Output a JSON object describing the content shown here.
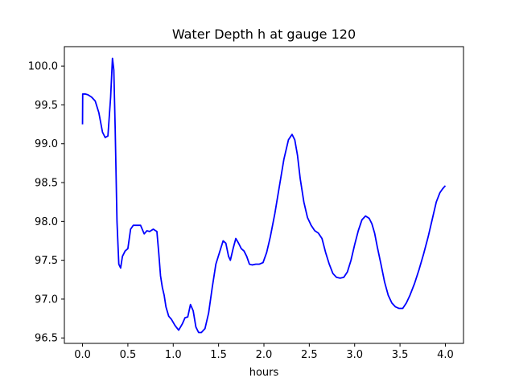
{
  "chart_data": {
    "type": "line",
    "title": "Water Depth h at gauge 120",
    "xlabel": "hours",
    "ylabel": "",
    "xlim": [
      -0.2,
      4.2
    ],
    "ylim": [
      96.43,
      100.25
    ],
    "xticks": [
      {
        "value": 0.0,
        "label": "0.0"
      },
      {
        "value": 0.5,
        "label": "0.5"
      },
      {
        "value": 1.0,
        "label": "1.0"
      },
      {
        "value": 1.5,
        "label": "1.5"
      },
      {
        "value": 2.0,
        "label": "2.0"
      },
      {
        "value": 2.5,
        "label": "2.5"
      },
      {
        "value": 3.0,
        "label": "3.0"
      },
      {
        "value": 3.5,
        "label": "3.5"
      },
      {
        "value": 4.0,
        "label": "4.0"
      }
    ],
    "yticks": [
      {
        "value": 96.5,
        "label": "96.5"
      },
      {
        "value": 97.0,
        "label": "97.0"
      },
      {
        "value": 97.5,
        "label": "97.5"
      },
      {
        "value": 98.0,
        "label": "98.0"
      },
      {
        "value": 98.5,
        "label": "98.5"
      },
      {
        "value": 99.0,
        "label": "99.0"
      },
      {
        "value": 99.5,
        "label": "99.5"
      },
      {
        "value": 100.0,
        "label": "100.0"
      }
    ],
    "grid": false,
    "series": [
      {
        "color": "#0000ff",
        "x": [
          0.0,
          0.002,
          0.03,
          0.06,
          0.1,
          0.14,
          0.18,
          0.22,
          0.25,
          0.28,
          0.31,
          0.33,
          0.345,
          0.36,
          0.38,
          0.4,
          0.42,
          0.44,
          0.47,
          0.5,
          0.53,
          0.56,
          0.6,
          0.64,
          0.68,
          0.71,
          0.74,
          0.78,
          0.82,
          0.84,
          0.86,
          0.88,
          0.9,
          0.92,
          0.95,
          0.98,
          1.02,
          1.06,
          1.1,
          1.13,
          1.16,
          1.19,
          1.22,
          1.25,
          1.28,
          1.31,
          1.35,
          1.39,
          1.43,
          1.47,
          1.51,
          1.55,
          1.58,
          1.61,
          1.63,
          1.66,
          1.69,
          1.72,
          1.75,
          1.78,
          1.81,
          1.84,
          1.87,
          1.91,
          1.95,
          1.99,
          2.03,
          2.07,
          2.12,
          2.17,
          2.22,
          2.27,
          2.31,
          2.34,
          2.37,
          2.4,
          2.44,
          2.48,
          2.52,
          2.56,
          2.6,
          2.64,
          2.68,
          2.72,
          2.76,
          2.8,
          2.84,
          2.88,
          2.92,
          2.96,
          3.0,
          3.04,
          3.08,
          3.12,
          3.16,
          3.19,
          3.22,
          3.25,
          3.29,
          3.33,
          3.37,
          3.41,
          3.45,
          3.49,
          3.53,
          3.57,
          3.61,
          3.66,
          3.71,
          3.76,
          3.81,
          3.86,
          3.9,
          3.94,
          3.97,
          4.0
        ],
        "y": [
          99.25,
          99.64,
          99.64,
          99.63,
          99.6,
          99.55,
          99.4,
          99.15,
          99.08,
          99.1,
          99.6,
          100.1,
          99.95,
          99.2,
          98.0,
          97.45,
          97.4,
          97.55,
          97.62,
          97.65,
          97.9,
          97.95,
          97.95,
          97.95,
          97.84,
          97.88,
          97.87,
          97.9,
          97.87,
          97.6,
          97.3,
          97.15,
          97.05,
          96.9,
          96.78,
          96.74,
          96.66,
          96.6,
          96.68,
          96.76,
          96.77,
          96.93,
          96.85,
          96.64,
          96.57,
          96.57,
          96.62,
          96.82,
          97.15,
          97.45,
          97.6,
          97.75,
          97.72,
          97.55,
          97.5,
          97.65,
          97.78,
          97.72,
          97.65,
          97.62,
          97.55,
          97.45,
          97.44,
          97.45,
          97.45,
          97.47,
          97.6,
          97.8,
          98.1,
          98.45,
          98.8,
          99.05,
          99.12,
          99.05,
          98.85,
          98.55,
          98.25,
          98.05,
          97.95,
          97.88,
          97.85,
          97.78,
          97.6,
          97.45,
          97.33,
          97.28,
          97.27,
          97.28,
          97.35,
          97.5,
          97.7,
          97.88,
          98.02,
          98.07,
          98.04,
          97.97,
          97.85,
          97.67,
          97.45,
          97.22,
          97.05,
          96.95,
          96.9,
          96.88,
          96.88,
          96.95,
          97.05,
          97.2,
          97.38,
          97.58,
          97.8,
          98.05,
          98.25,
          98.37,
          98.42,
          98.46
        ]
      }
    ]
  }
}
